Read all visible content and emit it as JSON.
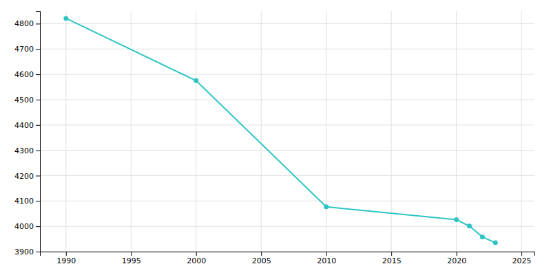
{
  "chart_data": {
    "type": "line",
    "x": [
      1990,
      2000,
      2010,
      2020,
      2021,
      2022,
      2023
    ],
    "values": [
      4821,
      4575,
      4077,
      4026,
      4001,
      3958,
      3935
    ],
    "color": "#2ec4c4",
    "marker": "circle",
    "xlim": [
      1988,
      2026
    ],
    "ylim": [
      3900,
      4850
    ],
    "xticks": [
      1990,
      1995,
      2000,
      2005,
      2010,
      2015,
      2020,
      2025
    ],
    "yticks": [
      3900,
      4000,
      4100,
      4200,
      4300,
      4400,
      4500,
      4600,
      4700,
      4800
    ],
    "grid": true
  }
}
